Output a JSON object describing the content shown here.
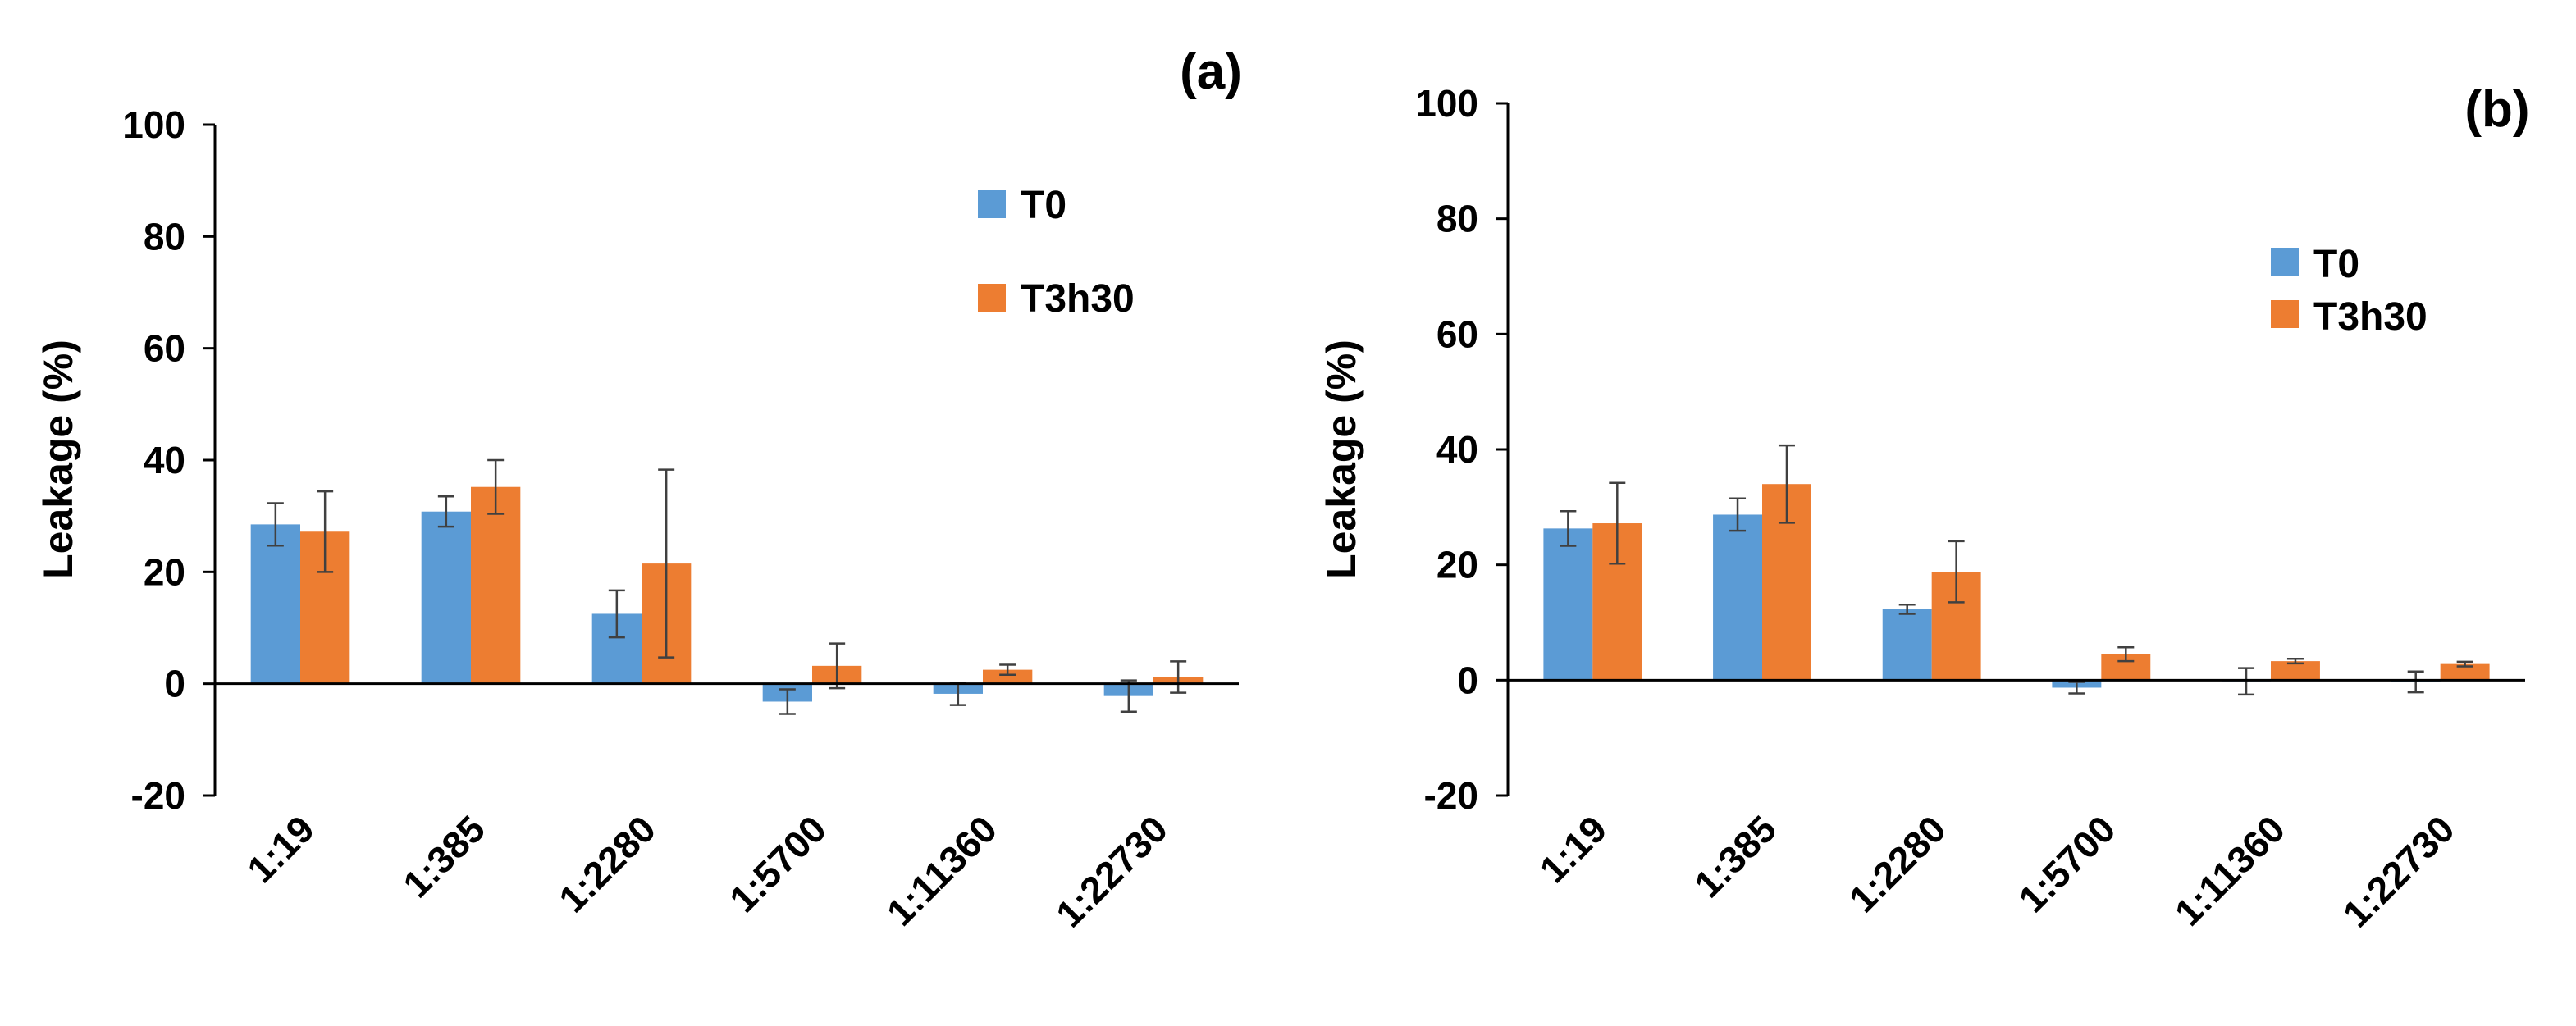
{
  "chart_data": [
    {
      "type": "bar",
      "panel_label": "(a)",
      "ylabel": "Leakage (%)",
      "xlabel": "",
      "ylim": [
        -20,
        100
      ],
      "yticks": [
        "-20",
        "0",
        "20",
        "40",
        "60",
        "80",
        "100"
      ],
      "categories": [
        "1:19",
        "1:385",
        "1:2280",
        "1:5700",
        "1:11360",
        "1:22730"
      ],
      "legend_position": "top-right",
      "series": [
        {
          "name": "T0",
          "color": "#5B9BD5",
          "values": [
            28.5,
            30.8,
            12.5,
            -3.2,
            -1.8,
            -2.2
          ],
          "errors": [
            3.8,
            2.7,
            4.2,
            2.2,
            2.0,
            2.8
          ]
        },
        {
          "name": "T3h30",
          "color": "#ED7D31",
          "values": [
            27.2,
            35.2,
            21.5,
            3.2,
            2.5,
            1.2
          ],
          "errors": [
            7.2,
            4.8,
            16.8,
            4.0,
            0.9,
            2.8
          ]
        }
      ]
    },
    {
      "type": "bar",
      "panel_label": "(b)",
      "ylabel": "Leakage (%)",
      "xlabel": "",
      "ylim": [
        -20,
        100
      ],
      "yticks": [
        "-20",
        "0",
        "20",
        "40",
        "60",
        "80",
        "100"
      ],
      "categories": [
        "1:19",
        "1:385",
        "1:2280",
        "1:5700",
        "1:11360",
        "1:22730"
      ],
      "legend_position": "top-right",
      "series": [
        {
          "name": "T0",
          "color": "#5B9BD5",
          "values": [
            26.3,
            28.7,
            12.3,
            -1.3,
            -0.2,
            -0.3
          ],
          "errors": [
            3.0,
            2.8,
            0.8,
            1.0,
            2.3,
            1.8
          ]
        },
        {
          "name": "T3h30",
          "color": "#ED7D31",
          "values": [
            27.2,
            34.0,
            18.8,
            4.5,
            3.3,
            2.8
          ],
          "errors": [
            7.0,
            6.7,
            5.3,
            1.2,
            0.4,
            0.4
          ]
        }
      ]
    }
  ]
}
